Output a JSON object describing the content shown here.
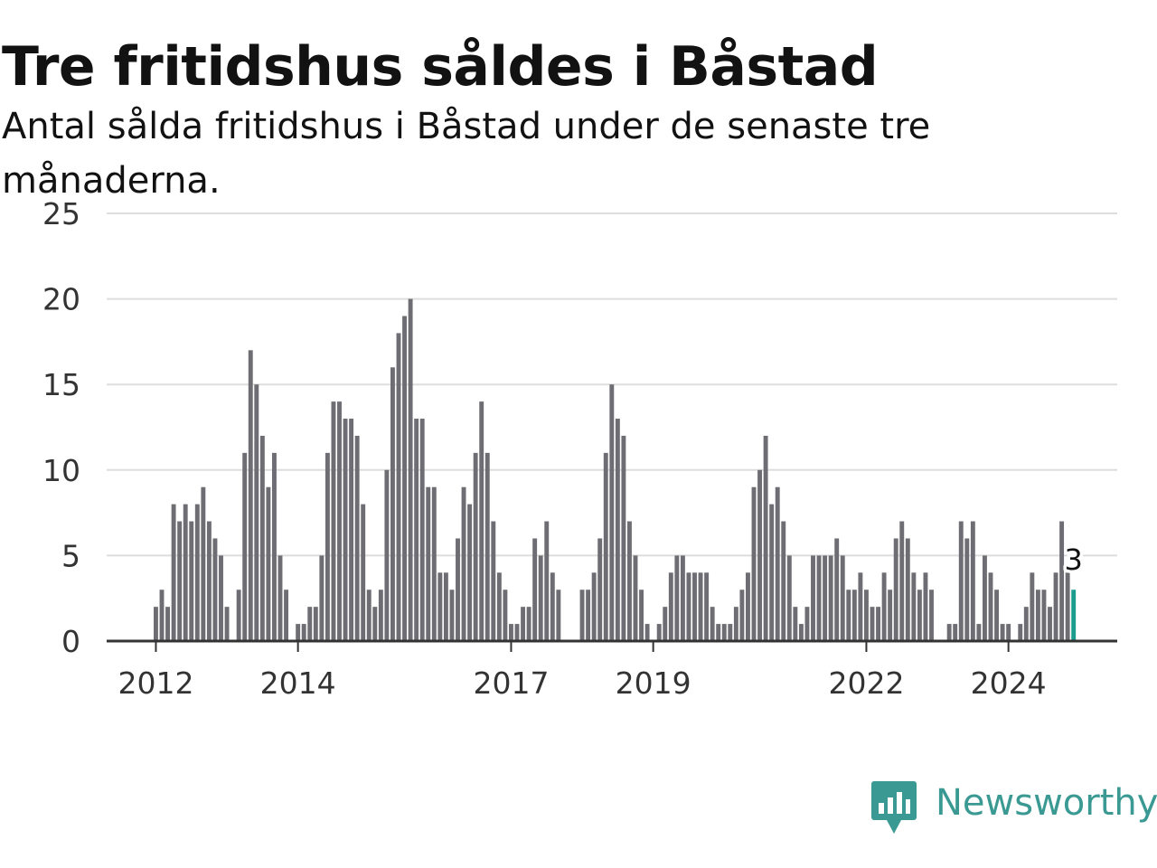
{
  "title": "Tre fritidshus såldes i Båstad",
  "subtitle": "Antal sålda fritidshus i Båstad under de senaste tre månaderna.",
  "brand": {
    "name": "Newsworthy",
    "icon": "newsworthy-logo-icon",
    "color": "#3a9a93"
  },
  "colors": {
    "bar": "#6e6d73",
    "highlight": "#1b9c8f",
    "grid": "#dddddd",
    "axis": "#333333"
  },
  "chart_data": {
    "type": "bar",
    "x_axis": "monthly, Jan 2012 – Dec 2024",
    "x_tick_labels": [
      "2012",
      "2014",
      "2017",
      "2019",
      "2022",
      "2024"
    ],
    "y_ticks": [
      0,
      5,
      10,
      15,
      20,
      25
    ],
    "ylim": [
      0,
      25
    ],
    "grid": true,
    "highlighted_last_value": "3",
    "series": [
      {
        "values": [
          2,
          3,
          2,
          8,
          7,
          8,
          7,
          8,
          9,
          7,
          6,
          5,
          2,
          0,
          3,
          11,
          17,
          15,
          12,
          9,
          11,
          5,
          3,
          0,
          1,
          1,
          2,
          2,
          5,
          11,
          14,
          14,
          13,
          13,
          12,
          8,
          3,
          2,
          3,
          10,
          16,
          18,
          19,
          20,
          13,
          13,
          9,
          9,
          4,
          4,
          3,
          6,
          9,
          8,
          11,
          14,
          11,
          7,
          4,
          3,
          1,
          1,
          2,
          2,
          6,
          5,
          7,
          4,
          3,
          0,
          0,
          0,
          3,
          3,
          4,
          6,
          11,
          15,
          13,
          12,
          7,
          5,
          3,
          1,
          0,
          1,
          2,
          4,
          5,
          5,
          4,
          4,
          4,
          4,
          2,
          1,
          1,
          1,
          2,
          3,
          4,
          9,
          10,
          12,
          8,
          9,
          7,
          5,
          2,
          1,
          2,
          5,
          5,
          5,
          5,
          6,
          5,
          3,
          3,
          4,
          3,
          2,
          2,
          4,
          3,
          6,
          7,
          6,
          4,
          3,
          4,
          3,
          0,
          0,
          1,
          1,
          7,
          6,
          7,
          1,
          5,
          4,
          3,
          1,
          1,
          0,
          1,
          2,
          4,
          3,
          3,
          2,
          4,
          7,
          4,
          3
        ]
      }
    ]
  }
}
